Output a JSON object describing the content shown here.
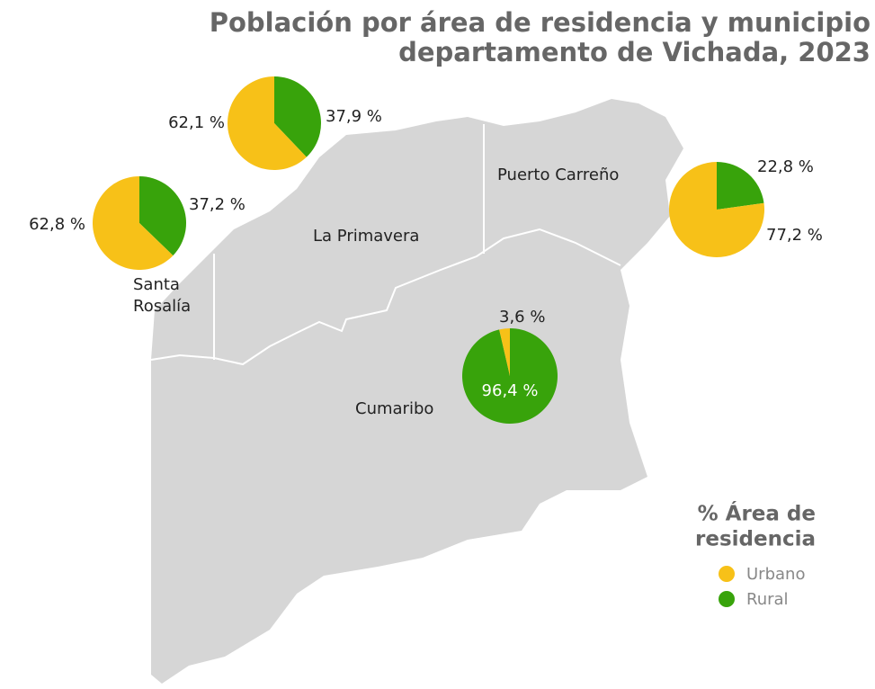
{
  "title": [
    "Población por área de residencia y municipio",
    "departamento de Vichada, 2023"
  ],
  "municipalities": [
    {
      "name": [
        "La Primavera"
      ],
      "values": [
        62.1,
        37.9
      ],
      "value_labels": [
        "62,1 %",
        "37,9 %"
      ]
    },
    {
      "name": [
        "Santa",
        "Rosalía"
      ],
      "values": [
        62.8,
        37.2
      ],
      "value_labels": [
        "62,8 %",
        "37,2 %"
      ]
    },
    {
      "name": [
        "Puerto Carreño"
      ],
      "values": [
        77.2,
        22.8
      ],
      "value_labels": [
        "77,2 %",
        "22,8 %"
      ]
    },
    {
      "name": [
        "Cumaribo"
      ],
      "values": [
        3.6,
        96.4
      ],
      "value_labels": [
        "3,6 %",
        "96,4 %"
      ]
    }
  ],
  "legend": {
    "title": [
      "% Área de",
      "residencia"
    ],
    "items": [
      {
        "name": "Urbano",
        "color": "#f7c118"
      },
      {
        "name": "Rural",
        "color": "#38a30b"
      }
    ]
  }
}
